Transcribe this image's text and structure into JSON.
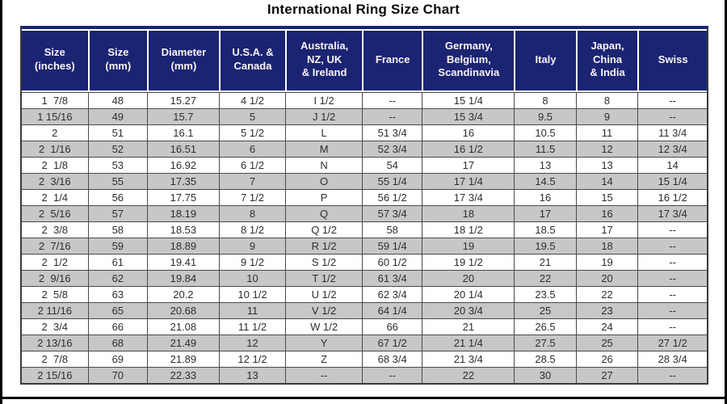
{
  "colors": {
    "header_bg": "#1a2472",
    "header_text": "#fbf3f5",
    "row_alt_bg": "#c7c7c7",
    "grid_border": "#4a4a4a",
    "outer_border": "#3a3a3a"
  },
  "chart_data": {
    "type": "table",
    "title": "International Ring Size Chart",
    "columns": [
      "Size\n(inches)",
      "Size\n(mm)",
      "Diameter\n(mm)",
      "U.S.A. &\nCanada",
      "Australia,\nNZ, UK\n& Ireland",
      "France",
      "Germany,\nBelgium,\nScandinavia",
      "Italy",
      "Japan,\nChina\n& India",
      "Swiss"
    ],
    "rows": [
      [
        "1  7/8",
        "48",
        "15.27",
        "4 1/2",
        "I 1/2",
        "--",
        "15 1/4",
        "8",
        "8",
        "--"
      ],
      [
        "1 15/16",
        "49",
        "15.7",
        "5",
        "J 1/2",
        "--",
        "15 3/4",
        "9.5",
        "9",
        "--"
      ],
      [
        "2",
        "51",
        "16.1",
        "5 1/2",
        "L",
        "51 3/4",
        "16",
        "10.5",
        "11",
        "11 3/4"
      ],
      [
        "2  1/16",
        "52",
        "16.51",
        "6",
        "M",
        "52 3/4",
        "16 1/2",
        "11.5",
        "12",
        "12 3/4"
      ],
      [
        "2  1/8",
        "53",
        "16.92",
        "6 1/2",
        "N",
        "54",
        "17",
        "13",
        "13",
        "14"
      ],
      [
        "2  3/16",
        "55",
        "17.35",
        "7",
        "O",
        "55 1/4",
        "17 1/4",
        "14.5",
        "14",
        "15 1/4"
      ],
      [
        "2  1/4",
        "56",
        "17.75",
        "7 1/2",
        "P",
        "56 1/2",
        "17 3/4",
        "16",
        "15",
        "16 1/2"
      ],
      [
        "2  5/16",
        "57",
        "18.19",
        "8",
        "Q",
        "57 3/4",
        "18",
        "17",
        "16",
        "17 3/4"
      ],
      [
        "2  3/8",
        "58",
        "18.53",
        "8 1/2",
        "Q 1/2",
        "58",
        "18 1/2",
        "18.5",
        "17",
        "--"
      ],
      [
        "2  7/16",
        "59",
        "18.89",
        "9",
        "R 1/2",
        "59 1/4",
        "19",
        "19.5",
        "18",
        "--"
      ],
      [
        "2  1/2",
        "61",
        "19.41",
        "9 1/2",
        "S 1/2",
        "60 1/2",
        "19 1/2",
        "21",
        "19",
        "--"
      ],
      [
        "2  9/16",
        "62",
        "19.84",
        "10",
        "T 1/2",
        "61 3/4",
        "20",
        "22",
        "20",
        "--"
      ],
      [
        "2  5/8",
        "63",
        "20.2",
        "10 1/2",
        "U 1/2",
        "62 3/4",
        "20 1/4",
        "23.5",
        "22",
        "--"
      ],
      [
        "2 11/16",
        "65",
        "20.68",
        "11",
        "V 1/2",
        "64 1/4",
        "20 3/4",
        "25",
        "23",
        "--"
      ],
      [
        "2  3/4",
        "66",
        "21.08",
        "11 1/2",
        "W 1/2",
        "66",
        "21",
        "26.5",
        "24",
        "--"
      ],
      [
        "2 13/16",
        "68",
        "21.49",
        "12",
        "Y",
        "67 1/2",
        "21 1/4",
        "27.5",
        "25",
        "27 1/2"
      ],
      [
        "2  7/8",
        "69",
        "21.89",
        "12 1/2",
        "Z",
        "68 3/4",
        "21 3/4",
        "28.5",
        "26",
        "28 3/4"
      ],
      [
        "2 15/16",
        "70",
        "22.33",
        "13",
        "--",
        "--",
        "22",
        "30",
        "27",
        "--"
      ]
    ]
  }
}
